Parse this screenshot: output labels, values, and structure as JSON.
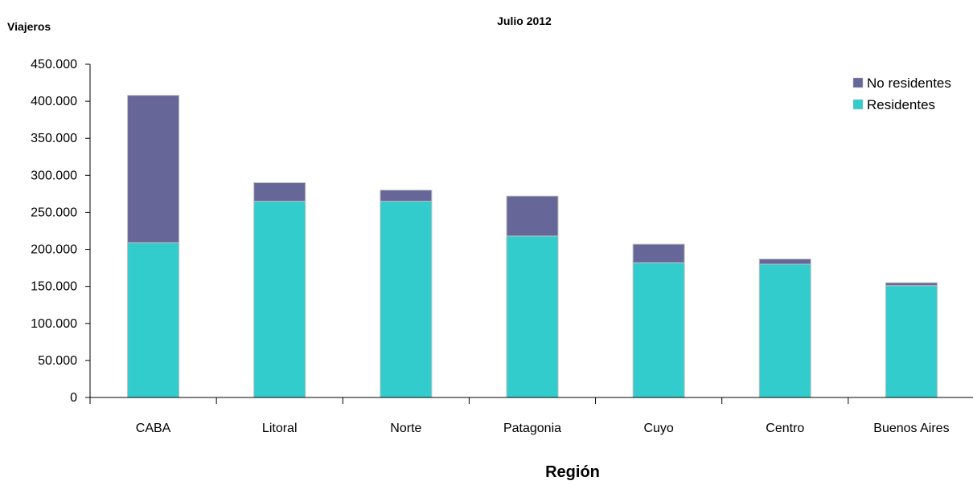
{
  "colors": {
    "residentes": "#33CCCC",
    "no_residentes": "#666699",
    "bar_outline": "#BFBFBF",
    "axis": "#000000",
    "text": "#000000"
  },
  "chart_data": {
    "type": "bar",
    "stacked": true,
    "title": "Julio 2012",
    "ylabel": "Viajeros",
    "xlabel": "Región",
    "ylim": [
      0,
      450000
    ],
    "y_ticks": [
      0,
      50000,
      100000,
      150000,
      200000,
      250000,
      300000,
      350000,
      400000,
      450000
    ],
    "y_tick_labels": [
      "0",
      "50.000",
      "100.000",
      "150.000",
      "200.000",
      "250.000",
      "300.000",
      "350.000",
      "400.000",
      "450.000"
    ],
    "categories": [
      "CABA",
      "Litoral",
      "Norte",
      "Patagonia",
      "Cuyo",
      "Centro",
      "Buenos Aires"
    ],
    "series": [
      {
        "name": "Residentes",
        "color": "#33CCCC",
        "values": [
          209000,
          265000,
          265000,
          218000,
          182000,
          180000,
          151000
        ]
      },
      {
        "name": "No residentes",
        "color": "#666699",
        "values": [
          199000,
          25000,
          15000,
          54000,
          25000,
          7000,
          4000
        ]
      }
    ],
    "legend": {
      "position": "top-right",
      "entries": [
        "No residentes",
        "Residentes"
      ]
    },
    "grid": false
  }
}
